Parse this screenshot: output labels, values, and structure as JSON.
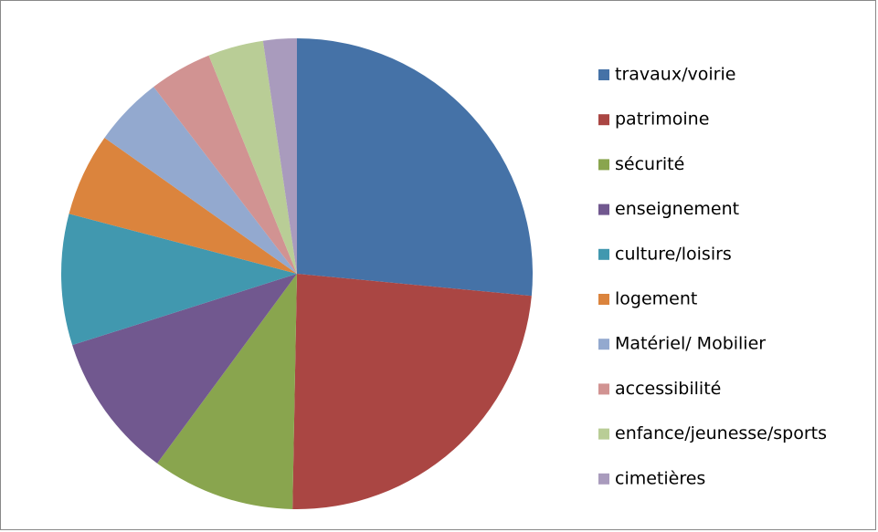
{
  "chart_data": {
    "type": "pie",
    "categories": [
      "travaux/voirie",
      "patrimoine",
      "sécurité",
      "enseignement",
      "culture/loisirs",
      "logement",
      "Matériel/ Mobilier",
      "accessibilité",
      "enfance/jeunesse/sports",
      "cimetières"
    ],
    "values": [
      26.5,
      23.8,
      9.8,
      10,
      9,
      5.7,
      4.8,
      4.3,
      3.8,
      2.3
    ],
    "colors": [
      "#4572a7",
      "#aa4643",
      "#89a54e",
      "#71588f",
      "#4198af",
      "#db843d",
      "#93a9cf",
      "#d19392",
      "#b9cd96",
      "#a99bbd"
    ],
    "legend": "right"
  }
}
